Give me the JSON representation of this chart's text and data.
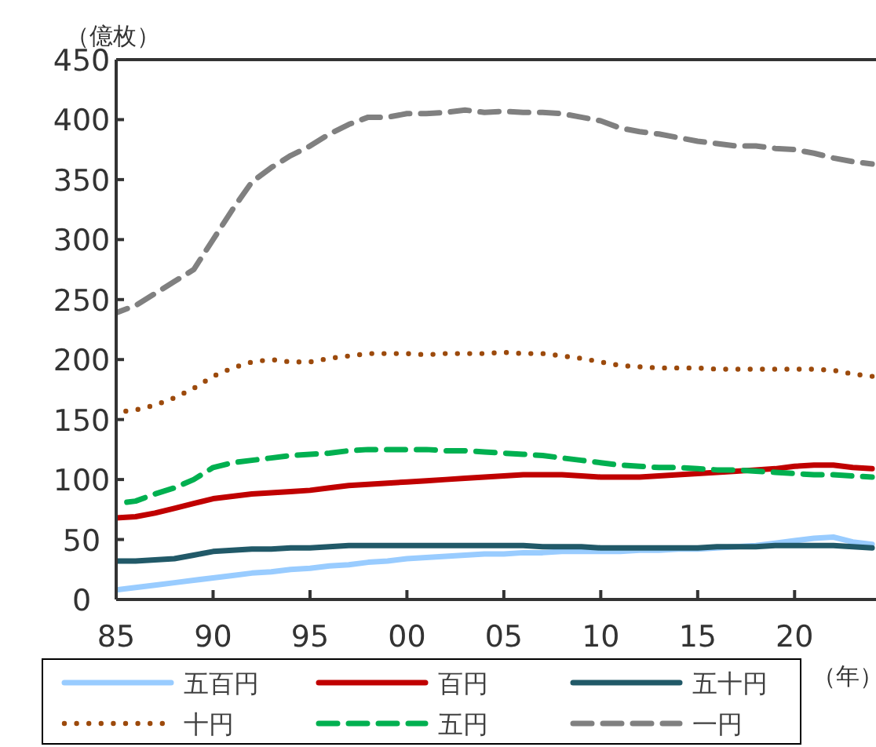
{
  "chart_data": {
    "type": "line",
    "ylabel": "（億枚）",
    "xlabel": "（年）",
    "x": [
      1985,
      1986,
      1987,
      1988,
      1989,
      1990,
      1991,
      1992,
      1993,
      1994,
      1995,
      1996,
      1997,
      1998,
      1999,
      2000,
      2001,
      2002,
      2003,
      2004,
      2005,
      2006,
      2007,
      2008,
      2009,
      2010,
      2011,
      2012,
      2013,
      2014,
      2015,
      2016,
      2017,
      2018,
      2019,
      2020,
      2021,
      2022,
      2023,
      2024
    ],
    "xlim": [
      1985,
      2024.2
    ],
    "xticks": [
      {
        "value": 1985,
        "label": "85"
      },
      {
        "value": 1990,
        "label": "90"
      },
      {
        "value": 1995,
        "label": "95"
      },
      {
        "value": 2000,
        "label": "00"
      },
      {
        "value": 2005,
        "label": "05"
      },
      {
        "value": 2010,
        "label": "10"
      },
      {
        "value": 2015,
        "label": "15"
      },
      {
        "value": 2020,
        "label": "20"
      }
    ],
    "ylim": [
      0,
      450
    ],
    "yticks": [
      0,
      50,
      100,
      150,
      200,
      250,
      300,
      350,
      400,
      450
    ],
    "grid": false,
    "legend": "bottom",
    "marker": "none",
    "series": [
      {
        "name": "五百円",
        "color": "#99ccff",
        "line_style": "solid",
        "values": [
          8,
          10,
          12,
          14,
          16,
          18,
          20,
          22,
          23,
          25,
          26,
          28,
          29,
          31,
          32,
          34,
          35,
          36,
          37,
          38,
          38,
          39,
          39,
          40,
          40,
          40,
          40,
          41,
          41,
          42,
          42,
          43,
          44,
          45,
          47,
          49,
          51,
          52,
          48,
          46
        ]
      },
      {
        "name": "百円",
        "color": "#c00000",
        "line_style": "solid",
        "values": [
          68,
          69,
          72,
          76,
          80,
          84,
          86,
          88,
          89,
          90,
          91,
          93,
          95,
          96,
          97,
          98,
          99,
          100,
          101,
          102,
          103,
          104,
          104,
          104,
          103,
          102,
          102,
          102,
          103,
          104,
          105,
          106,
          107,
          108,
          109,
          111,
          112,
          112,
          110,
          109
        ]
      },
      {
        "name": "五十円",
        "color": "#215968",
        "line_style": "solid",
        "values": [
          32,
          32,
          33,
          34,
          37,
          40,
          41,
          42,
          42,
          43,
          43,
          44,
          45,
          45,
          45,
          45,
          45,
          45,
          45,
          45,
          45,
          45,
          44,
          44,
          44,
          43,
          43,
          43,
          43,
          43,
          43,
          44,
          44,
          44,
          45,
          45,
          45,
          45,
          44,
          43
        ]
      },
      {
        "name": "十円",
        "color": "#9c4a0c",
        "line_style": "dotted",
        "values": [
          156,
          158,
          162,
          168,
          176,
          186,
          193,
          198,
          200,
          198,
          198,
          201,
          203,
          205,
          205,
          205,
          204,
          205,
          205,
          205,
          206,
          205,
          205,
          203,
          201,
          198,
          195,
          194,
          193,
          193,
          193,
          192,
          192,
          192,
          192,
          192,
          192,
          191,
          188,
          186
        ]
      },
      {
        "name": "五円",
        "color": "#00b050",
        "line_style": "dashed",
        "values": [
          80,
          82,
          88,
          93,
          100,
          110,
          114,
          116,
          118,
          120,
          121,
          122,
          124,
          125,
          125,
          125,
          125,
          124,
          124,
          123,
          122,
          121,
          120,
          118,
          116,
          114,
          112,
          111,
          110,
          110,
          109,
          108,
          108,
          107,
          106,
          105,
          104,
          104,
          103,
          102
        ]
      },
      {
        "name": "一円",
        "color": "#808080",
        "line_style": "dashed",
        "values": [
          239,
          245,
          255,
          265,
          275,
          300,
          325,
          348,
          360,
          370,
          378,
          388,
          396,
          402,
          402,
          405,
          405,
          406,
          408,
          406,
          407,
          406,
          406,
          405,
          402,
          399,
          393,
          390,
          388,
          385,
          382,
          380,
          378,
          378,
          376,
          375,
          372,
          368,
          365,
          363
        ]
      }
    ]
  }
}
